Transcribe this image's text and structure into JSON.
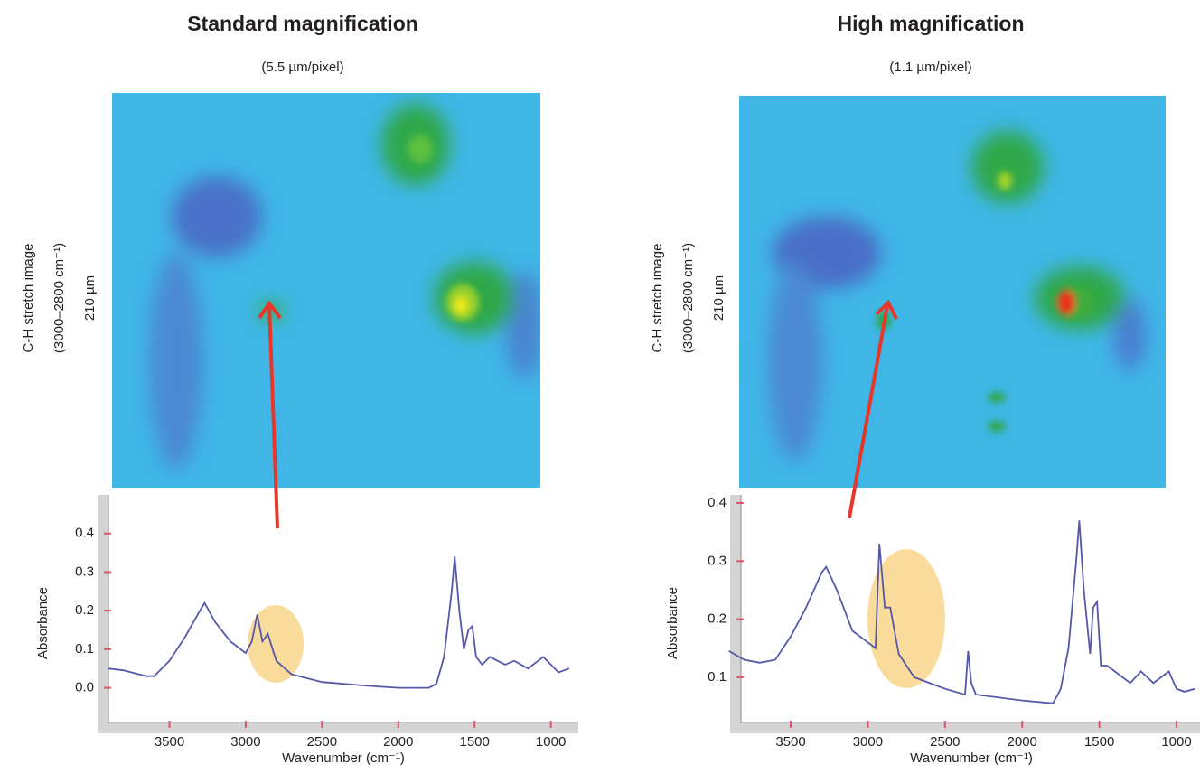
{
  "chart_data": [
    {
      "type": "line",
      "title": "Standard magnification",
      "subtitle": "(5.5 µm/pixel)",
      "image_labels": [
        "C-H stretch image",
        "(3000–2800 cm⁻¹)",
        "210 µm"
      ],
      "xlabel": "Wavenumber (cm⁻¹)",
      "ylabel": "Absorbance",
      "xlim": [
        3900,
        820
      ],
      "ylim": [
        -0.09,
        0.5
      ],
      "xticks": [
        3500,
        3000,
        2500,
        2000,
        1500,
        1000
      ],
      "yticks": [
        {
          "value": 0,
          "label": "0.0"
        },
        0.1,
        0.2,
        0.3,
        0.4
      ],
      "series": [
        {
          "color": "#5558a8",
          "x": [
            3900,
            3800,
            3700,
            3650,
            3600,
            3500,
            3400,
            3300,
            3270,
            3200,
            3100,
            3000,
            2960,
            2925,
            2890,
            2855,
            2800,
            2700,
            2500,
            2200,
            2000,
            1800,
            1750,
            1700,
            1650,
            1630,
            1600,
            1570,
            1540,
            1515,
            1490,
            1450,
            1400,
            1300,
            1240,
            1150,
            1050,
            1000,
            950,
            880
          ],
          "values": [
            0.05,
            0.045,
            0.035,
            0.03,
            0.03,
            0.07,
            0.13,
            0.2,
            0.22,
            0.17,
            0.12,
            0.09,
            0.12,
            0.19,
            0.12,
            0.14,
            0.07,
            0.035,
            0.015,
            0.005,
            0.0,
            0.0,
            0.01,
            0.08,
            0.25,
            0.34,
            0.2,
            0.1,
            0.15,
            0.16,
            0.08,
            0.06,
            0.08,
            0.06,
            0.07,
            0.05,
            0.08,
            0.06,
            0.04,
            0.05
          ]
        }
      ]
    },
    {
      "type": "line",
      "title": "High magnification",
      "subtitle": "(1.1 µm/pixel)",
      "image_labels": [
        "C-H stretch image",
        "(3000–2800 cm⁻¹)",
        "210 µm"
      ],
      "xlabel": "Wavenumber (cm⁻¹)",
      "ylabel": "Absorbance",
      "xlim": [
        3822,
        848
      ],
      "ylim": [
        0.022,
        0.414
      ],
      "xticks": [
        3500,
        3000,
        2500,
        2000,
        1500,
        1000
      ],
      "yticks": [
        0.1,
        0.2,
        0.3,
        0.4
      ],
      "series": [
        {
          "color": "#5558a8",
          "x": [
            3900,
            3800,
            3700,
            3600,
            3500,
            3400,
            3300,
            3270,
            3200,
            3100,
            3000,
            2950,
            2925,
            2890,
            2855,
            2800,
            2700,
            2500,
            2370,
            2350,
            2330,
            2300,
            2000,
            1800,
            1750,
            1700,
            1650,
            1630,
            1600,
            1560,
            1540,
            1515,
            1490,
            1450,
            1400,
            1300,
            1230,
            1150,
            1050,
            1000,
            950,
            880
          ],
          "values": [
            0.145,
            0.13,
            0.125,
            0.13,
            0.17,
            0.22,
            0.28,
            0.29,
            0.25,
            0.18,
            0.16,
            0.15,
            0.33,
            0.22,
            0.22,
            0.14,
            0.1,
            0.08,
            0.07,
            0.145,
            0.09,
            0.07,
            0.06,
            0.055,
            0.08,
            0.15,
            0.3,
            0.37,
            0.25,
            0.14,
            0.22,
            0.23,
            0.12,
            0.12,
            0.11,
            0.09,
            0.11,
            0.09,
            0.11,
            0.08,
            0.075,
            0.08
          ]
        }
      ]
    }
  ]
}
